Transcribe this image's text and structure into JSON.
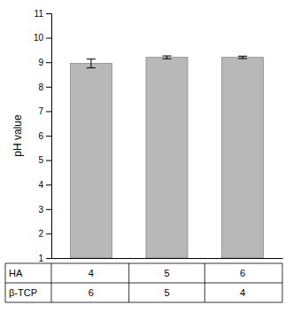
{
  "chart_data": {
    "type": "bar",
    "categories": [
      null,
      null,
      null
    ],
    "values": [
      8.95,
      9.2,
      9.2
    ],
    "errors": [
      0.18,
      0.06,
      0.05
    ],
    "color": "#b8b8b8",
    "y_label": "pH value",
    "ylim": [
      1,
      11
    ],
    "yticks": [
      1,
      2,
      3,
      4,
      5,
      6,
      7,
      8,
      9,
      10,
      11
    ],
    "grid": false,
    "table": [
      {
        "label": "HA",
        "values": [
          4,
          5,
          6
        ]
      },
      {
        "label": "β-TCP",
        "values": [
          6,
          5,
          4
        ]
      }
    ]
  }
}
